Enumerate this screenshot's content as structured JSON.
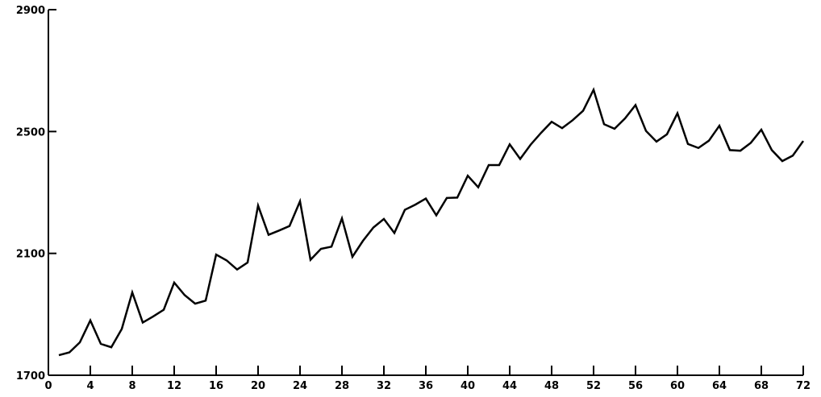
{
  "chart_data": {
    "type": "line",
    "title": "",
    "xlabel": "",
    "ylabel": "",
    "xlim": [
      0,
      72
    ],
    "ylim": [
      1700,
      2900
    ],
    "x_ticks": [
      0,
      4,
      8,
      12,
      16,
      20,
      24,
      28,
      32,
      36,
      40,
      44,
      48,
      52,
      56,
      60,
      64,
      68,
      72
    ],
    "x_tick_labels": [
      "0",
      "4",
      "8",
      "12",
      "16",
      "20",
      "24",
      "28",
      "32",
      "36",
      "40",
      "44",
      "48",
      "52",
      "56",
      "60",
      "64",
      "68",
      "72"
    ],
    "y_ticks": [
      1700,
      2100,
      2500,
      2900
    ],
    "y_tick_labels": [
      "1700",
      "2100",
      "2500",
      "2900"
    ],
    "grid": false,
    "series": [
      {
        "name": "",
        "color": "#000000",
        "x": [
          1,
          2,
          3,
          4,
          5,
          6,
          7,
          8,
          9,
          10,
          11,
          12,
          13,
          14,
          15,
          16,
          17,
          18,
          19,
          20,
          21,
          22,
          23,
          24,
          25,
          26,
          27,
          28,
          29,
          30,
          31,
          32,
          33,
          34,
          35,
          36,
          37,
          38,
          39,
          40,
          41,
          42,
          43,
          44,
          45,
          46,
          47,
          48,
          49,
          50,
          51,
          52,
          53,
          54,
          55,
          56,
          57,
          58,
          59,
          60,
          61,
          62,
          63,
          64,
          65,
          66,
          67,
          68,
          69,
          70,
          71,
          72
        ],
        "values": [
          1766,
          1775,
          1808,
          1880,
          1803,
          1792,
          1852,
          1972,
          1873,
          1893,
          1915,
          2004,
          1963,
          1935,
          1945,
          2096,
          2077,
          2047,
          2070,
          2257,
          2161,
          2175,
          2190,
          2271,
          2079,
          2115,
          2122,
          2215,
          2089,
          2141,
          2185,
          2213,
          2167,
          2243,
          2260,
          2280,
          2225,
          2282,
          2283,
          2355,
          2317,
          2390,
          2390,
          2458,
          2410,
          2457,
          2496,
          2532,
          2511,
          2537,
          2568,
          2637,
          2524,
          2509,
          2543,
          2587,
          2502,
          2467,
          2491,
          2560,
          2459,
          2446,
          2470,
          2519,
          2439,
          2437,
          2463,
          2506,
          2439,
          2403,
          2421,
          2469
        ]
      }
    ]
  }
}
